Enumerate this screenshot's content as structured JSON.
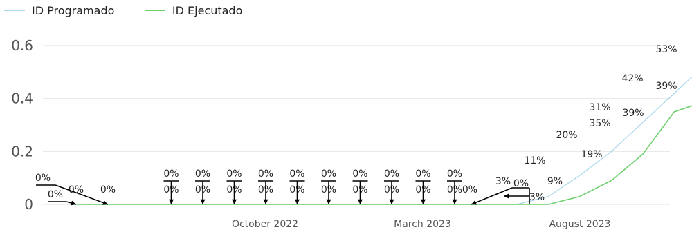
{
  "chart_data": {
    "type": "line",
    "title": "",
    "xlabel": "",
    "ylabel": "",
    "ylim": [
      0,
      0.65
    ],
    "yticks": [
      0,
      0.2,
      0.4,
      0.6
    ],
    "ytick_labels": [
      "0",
      "0.2",
      "0.4",
      "0.6"
    ],
    "x": [
      "2022-04",
      "2022-05",
      "2022-06",
      "2022-07",
      "2022-08",
      "2022-09",
      "2022-10",
      "2022-11",
      "2022-12",
      "2023-01",
      "2023-02",
      "2023-03",
      "2023-04",
      "2023-05",
      "2023-06",
      "2023-07",
      "2023-08",
      "2023-09",
      "2023-10",
      "2023-11",
      "2023-12",
      "2024-01",
      "2024-02"
    ],
    "xticks": [
      {
        "x": "2022-10",
        "label": "October 2022"
      },
      {
        "x": "2023-03",
        "label": "March 2023"
      },
      {
        "x": "2023-08",
        "label": "August 2023"
      }
    ],
    "grid": true,
    "legend_position": "top-left",
    "series": [
      {
        "name": "ID Programado",
        "color": "#a9d8ea",
        "values": [
          0,
          0,
          0,
          0,
          0,
          0,
          0,
          0,
          0,
          0,
          0,
          0,
          0,
          0,
          0,
          0.03,
          0.11,
          0.2,
          0.31,
          0.42,
          0.53,
          null,
          null
        ],
        "labels": [
          "0%",
          "0%",
          "0%",
          "0%",
          "0%",
          "0%",
          "0%",
          "0%",
          "0%",
          "0%",
          "0%",
          "0%",
          "0%",
          "0%",
          "0%",
          "3%",
          "11%",
          "20%",
          "31%",
          "42%",
          "53%",
          "",
          ""
        ]
      },
      {
        "name": "ID Ejecutado",
        "color": "#6ccf6c",
        "values": [
          0,
          0,
          0,
          0,
          0,
          0,
          0,
          0,
          0,
          0,
          0,
          0,
          0,
          0,
          0,
          0,
          0.03,
          0.09,
          0.19,
          0.35,
          0.39,
          0.39,
          null
        ],
        "labels": [
          "0%",
          "0%",
          "0%",
          "0%",
          "0%",
          "0%",
          "0%",
          "0%",
          "0%",
          "0%",
          "0%",
          "0%",
          "0%",
          "0%",
          "0%",
          "0%",
          "3%",
          "9%",
          "19%",
          "35%",
          "39%",
          "39%",
          ""
        ]
      }
    ]
  }
}
